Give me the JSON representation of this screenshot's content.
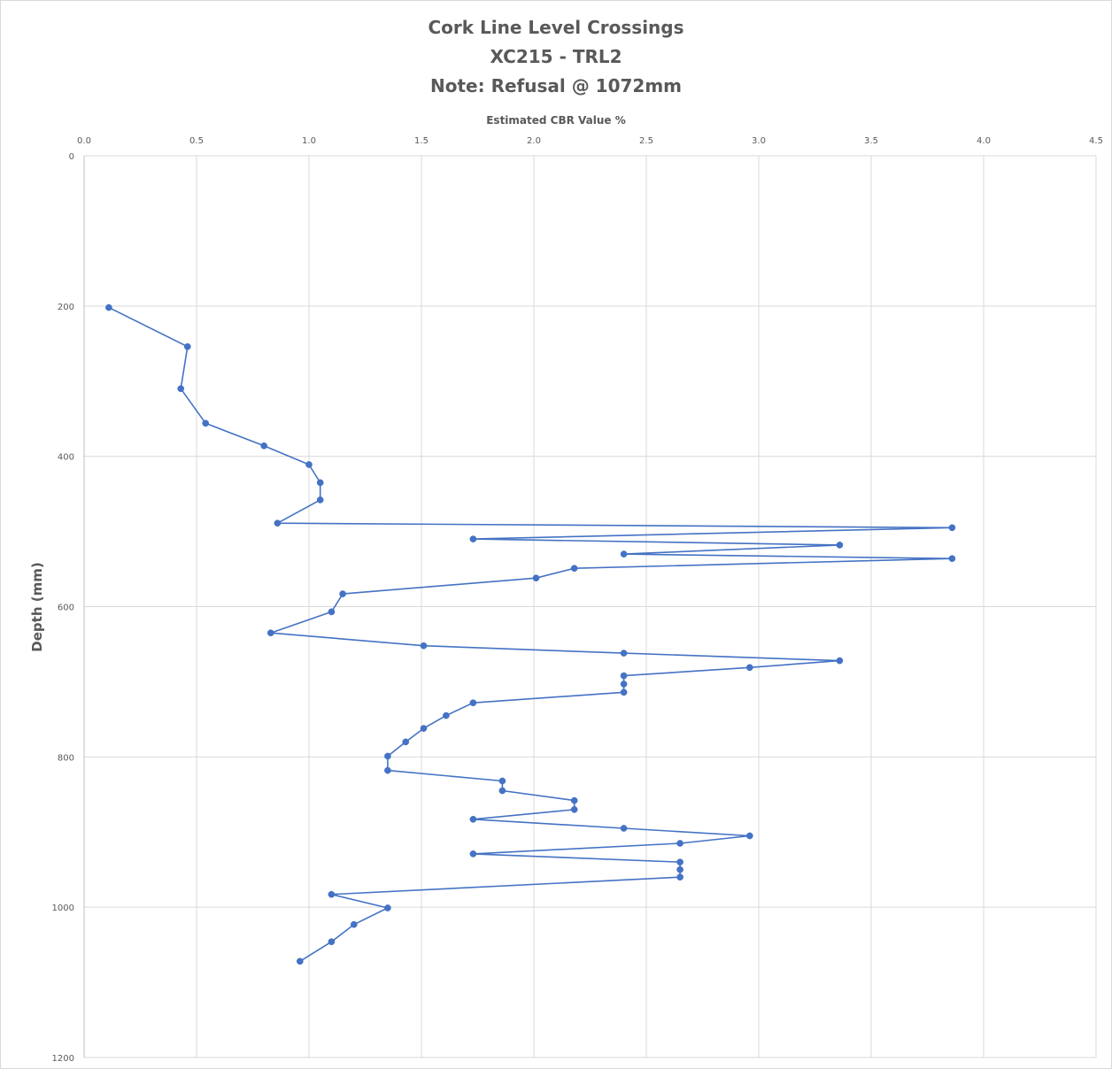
{
  "chart_data": {
    "type": "line",
    "title_lines": [
      "Cork Line Level Crossings",
      "XC215 - TRL2",
      "Note: Refusal @ 1072mm"
    ],
    "xlabel": "Estimated CBR Value %",
    "ylabel": "Depth (mm)",
    "x_axis_position": "top",
    "y_axis_reversed": true,
    "xlim": [
      0,
      4.5
    ],
    "ylim": [
      0,
      1200
    ],
    "x_ticks": [
      "0.0",
      "0.5",
      "1.0",
      "1.5",
      "2.0",
      "2.5",
      "3.0",
      "3.5",
      "4.0",
      "4.5"
    ],
    "y_ticks": [
      "0",
      "200",
      "400",
      "600",
      "800",
      "1000",
      "1200"
    ],
    "grid": "vertical and horizontal",
    "legend": "none",
    "series": [
      {
        "color": "#4472c4",
        "points": [
          [
            0.11,
            202
          ],
          [
            0.46,
            254
          ],
          [
            0.43,
            310
          ],
          [
            0.54,
            356
          ],
          [
            0.8,
            386
          ],
          [
            1.0,
            411
          ],
          [
            1.05,
            435
          ],
          [
            1.05,
            458
          ],
          [
            0.86,
            489
          ],
          [
            3.86,
            495
          ],
          [
            1.73,
            510
          ],
          [
            3.36,
            518
          ],
          [
            2.4,
            530
          ],
          [
            3.86,
            536
          ],
          [
            2.18,
            549
          ],
          [
            2.01,
            562
          ],
          [
            1.15,
            583
          ],
          [
            1.1,
            607
          ],
          [
            0.83,
            635
          ],
          [
            1.51,
            652
          ],
          [
            2.4,
            662
          ],
          [
            3.36,
            672
          ],
          [
            2.96,
            681
          ],
          [
            2.4,
            692
          ],
          [
            2.4,
            703
          ],
          [
            2.4,
            714
          ],
          [
            1.73,
            728
          ],
          [
            1.61,
            745
          ],
          [
            1.51,
            762
          ],
          [
            1.43,
            780
          ],
          [
            1.35,
            799
          ],
          [
            1.35,
            818
          ],
          [
            1.86,
            832
          ],
          [
            1.86,
            845
          ],
          [
            2.18,
            858
          ],
          [
            2.18,
            870
          ],
          [
            1.73,
            883
          ],
          [
            2.4,
            895
          ],
          [
            2.96,
            905
          ],
          [
            2.65,
            915
          ],
          [
            1.73,
            929
          ],
          [
            2.65,
            940
          ],
          [
            2.65,
            950
          ],
          [
            2.65,
            960
          ],
          [
            1.1,
            983
          ],
          [
            1.35,
            1001
          ],
          [
            1.2,
            1023
          ],
          [
            1.1,
            1046
          ],
          [
            0.96,
            1072
          ]
        ]
      }
    ]
  }
}
